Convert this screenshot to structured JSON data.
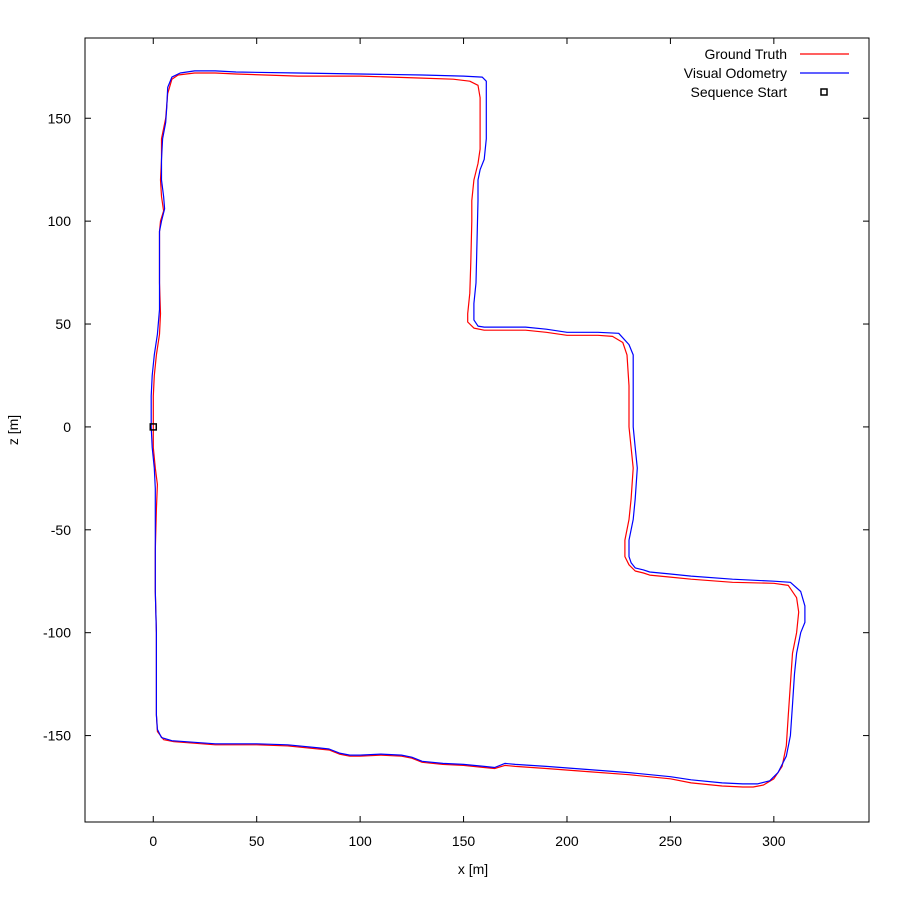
{
  "chart_data": {
    "type": "line",
    "xlabel": "x [m]",
    "ylabel": "z [m]",
    "xlim": [
      -33,
      346
    ],
    "ylim": [
      -192,
      189
    ],
    "x_ticks": [
      0,
      50,
      100,
      150,
      200,
      250,
      300
    ],
    "y_ticks": [
      -150,
      -100,
      -50,
      0,
      50,
      100,
      150
    ],
    "x_tick_labels": [
      "0",
      "50",
      "100",
      "150",
      "200",
      "250",
      "300"
    ],
    "y_tick_labels": [
      "-150",
      "-100",
      "-50",
      "0",
      "50",
      "100",
      "150"
    ],
    "grid": false,
    "legend_position": "top-right",
    "legend": [
      {
        "label": "Ground Truth",
        "color": "#ff0000",
        "kind": "line"
      },
      {
        "label": "Visual Odometry",
        "color": "#0000ff",
        "kind": "line"
      },
      {
        "label": "Sequence Start",
        "color": "#000000",
        "kind": "square-marker"
      }
    ],
    "series": [
      {
        "name": "Ground Truth",
        "color": "#ff0000",
        "points": [
          [
            0,
            0
          ],
          [
            0,
            -10
          ],
          [
            1,
            -20
          ],
          [
            2,
            -28
          ],
          [
            1.5,
            -40
          ],
          [
            1,
            -60
          ],
          [
            1,
            -80
          ],
          [
            1.5,
            -100
          ],
          [
            1.5,
            -120
          ],
          [
            1.5,
            -140
          ],
          [
            2,
            -148
          ],
          [
            5,
            -152
          ],
          [
            10,
            -153
          ],
          [
            30,
            -154.5
          ],
          [
            50,
            -154.5
          ],
          [
            65,
            -155
          ],
          [
            80,
            -156.5
          ],
          [
            85,
            -157
          ],
          [
            90,
            -159
          ],
          [
            95,
            -160
          ],
          [
            100,
            -160
          ],
          [
            110,
            -159.5
          ],
          [
            120,
            -160
          ],
          [
            125,
            -161
          ],
          [
            130,
            -163
          ],
          [
            140,
            -164
          ],
          [
            150,
            -164.5
          ],
          [
            160,
            -165.5
          ],
          [
            165,
            -166
          ],
          [
            170,
            -164.5
          ],
          [
            175,
            -165
          ],
          [
            190,
            -166
          ],
          [
            210,
            -167.5
          ],
          [
            230,
            -169
          ],
          [
            250,
            -171
          ],
          [
            260,
            -173
          ],
          [
            275,
            -174.5
          ],
          [
            285,
            -175
          ],
          [
            290,
            -175
          ],
          [
            295,
            -174
          ],
          [
            300,
            -171
          ],
          [
            304,
            -165
          ],
          [
            306,
            -155
          ],
          [
            307,
            -140
          ],
          [
            308,
            -125
          ],
          [
            309,
            -110
          ],
          [
            311,
            -100
          ],
          [
            312,
            -90
          ],
          [
            311,
            -83
          ],
          [
            307,
            -77
          ],
          [
            300,
            -76
          ],
          [
            280,
            -75.5
          ],
          [
            260,
            -74
          ],
          [
            250,
            -73
          ],
          [
            240,
            -72
          ],
          [
            237,
            -71
          ],
          [
            233,
            -70
          ],
          [
            230,
            -67
          ],
          [
            228,
            -63
          ],
          [
            228,
            -55
          ],
          [
            230,
            -45
          ],
          [
            231,
            -35
          ],
          [
            232,
            -20
          ],
          [
            231,
            -10
          ],
          [
            230,
            0
          ],
          [
            230,
            20
          ],
          [
            229,
            35
          ],
          [
            227,
            41
          ],
          [
            222,
            44
          ],
          [
            215,
            44.5
          ],
          [
            200,
            44.5
          ],
          [
            190,
            46
          ],
          [
            180,
            47
          ],
          [
            170,
            47
          ],
          [
            160,
            47
          ],
          [
            155,
            48
          ],
          [
            152,
            51
          ],
          [
            152,
            55
          ],
          [
            153,
            65
          ],
          [
            153.5,
            80
          ],
          [
            154,
            100
          ],
          [
            154,
            110
          ],
          [
            155,
            120
          ],
          [
            157,
            128
          ],
          [
            158,
            135
          ],
          [
            158,
            150
          ],
          [
            158,
            160
          ],
          [
            157,
            166
          ],
          [
            153,
            168
          ],
          [
            145,
            169
          ],
          [
            130,
            169.5
          ],
          [
            100,
            170.5
          ],
          [
            70,
            170.5
          ],
          [
            40,
            171.5
          ],
          [
            30,
            172
          ],
          [
            20,
            172
          ],
          [
            12,
            171
          ],
          [
            9,
            169
          ],
          [
            7,
            162
          ],
          [
            6,
            150
          ],
          [
            5,
            145
          ],
          [
            4,
            140
          ],
          [
            4,
            130
          ],
          [
            3.5,
            120
          ],
          [
            4,
            112
          ],
          [
            5,
            105
          ],
          [
            3.5,
            100
          ],
          [
            3,
            95
          ],
          [
            3,
            80
          ],
          [
            3,
            70
          ],
          [
            3.5,
            55
          ],
          [
            3,
            45
          ],
          [
            1.5,
            35
          ],
          [
            0.5,
            25
          ],
          [
            0,
            15
          ],
          [
            0,
            0
          ]
        ]
      },
      {
        "name": "Visual Odometry",
        "color": "#0000ff",
        "points": [
          [
            -1,
            0
          ],
          [
            -0.5,
            -10
          ],
          [
            0.5,
            -20
          ],
          [
            1,
            -30
          ],
          [
            1,
            -40
          ],
          [
            1,
            -60
          ],
          [
            1,
            -80
          ],
          [
            1.5,
            -100
          ],
          [
            1.5,
            -120
          ],
          [
            1.5,
            -140
          ],
          [
            2,
            -147
          ],
          [
            4,
            -151
          ],
          [
            9,
            -152.5
          ],
          [
            30,
            -154
          ],
          [
            50,
            -154
          ],
          [
            65,
            -154.5
          ],
          [
            80,
            -156
          ],
          [
            85,
            -156.5
          ],
          [
            90,
            -158.5
          ],
          [
            95,
            -159.5
          ],
          [
            100,
            -159.5
          ],
          [
            110,
            -159
          ],
          [
            120,
            -159.5
          ],
          [
            125,
            -160.5
          ],
          [
            130,
            -162.5
          ],
          [
            140,
            -163.5
          ],
          [
            150,
            -164
          ],
          [
            160,
            -165
          ],
          [
            165,
            -165.5
          ],
          [
            170,
            -163.5
          ],
          [
            175,
            -164
          ],
          [
            190,
            -165
          ],
          [
            210,
            -166.5
          ],
          [
            230,
            -168
          ],
          [
            250,
            -170
          ],
          [
            260,
            -171.5
          ],
          [
            275,
            -173
          ],
          [
            285,
            -173.5
          ],
          [
            292,
            -173.5
          ],
          [
            298,
            -172
          ],
          [
            302,
            -168
          ],
          [
            306,
            -160
          ],
          [
            308,
            -150
          ],
          [
            309,
            -135
          ],
          [
            310,
            -120
          ],
          [
            311,
            -110
          ],
          [
            313,
            -100
          ],
          [
            315,
            -95
          ],
          [
            315,
            -87
          ],
          [
            313,
            -80
          ],
          [
            308,
            -75.5
          ],
          [
            300,
            -75
          ],
          [
            280,
            -74
          ],
          [
            260,
            -72.5
          ],
          [
            250,
            -71.5
          ],
          [
            240,
            -70.5
          ],
          [
            237,
            -69.5
          ],
          [
            233,
            -68.5
          ],
          [
            231,
            -66
          ],
          [
            230,
            -63
          ],
          [
            230,
            -55
          ],
          [
            232,
            -45
          ],
          [
            233,
            -35
          ],
          [
            234,
            -20
          ],
          [
            233,
            -10
          ],
          [
            232,
            0
          ],
          [
            232,
            20
          ],
          [
            232,
            35
          ],
          [
            230,
            40
          ],
          [
            225,
            45.5
          ],
          [
            215,
            46
          ],
          [
            200,
            46
          ],
          [
            190,
            47.5
          ],
          [
            180,
            48.5
          ],
          [
            170,
            48.5
          ],
          [
            160,
            48.5
          ],
          [
            157,
            49
          ],
          [
            155,
            52
          ],
          [
            155,
            60
          ],
          [
            156,
            70
          ],
          [
            156.5,
            90
          ],
          [
            157,
            110
          ],
          [
            157,
            120
          ],
          [
            158,
            125
          ],
          [
            160,
            130
          ],
          [
            161,
            140
          ],
          [
            161,
            160
          ],
          [
            161,
            168
          ],
          [
            159,
            170
          ],
          [
            150,
            170.5
          ],
          [
            130,
            171
          ],
          [
            100,
            171.5
          ],
          [
            70,
            172
          ],
          [
            40,
            172.5
          ],
          [
            30,
            173
          ],
          [
            20,
            173
          ],
          [
            13,
            172
          ],
          [
            9,
            170
          ],
          [
            7,
            165
          ],
          [
            6.5,
            155
          ],
          [
            6,
            148
          ],
          [
            4.5,
            140
          ],
          [
            4,
            130
          ],
          [
            4,
            120
          ],
          [
            5,
            112
          ],
          [
            5.5,
            106
          ],
          [
            4,
            100
          ],
          [
            3,
            95
          ],
          [
            3,
            85
          ],
          [
            3,
            70
          ],
          [
            3,
            57
          ],
          [
            2,
            45
          ],
          [
            0.5,
            35
          ],
          [
            -0.5,
            25
          ],
          [
            -1,
            15
          ],
          [
            -1,
            0
          ]
        ]
      }
    ],
    "start_point": [
      0,
      0
    ]
  }
}
